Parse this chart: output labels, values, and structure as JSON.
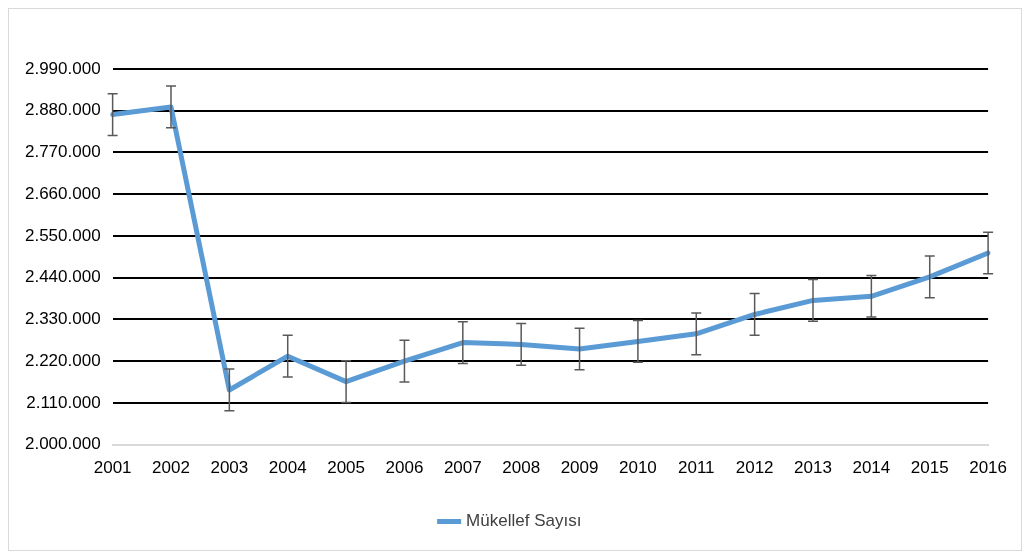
{
  "chart_data": {
    "type": "line",
    "categories": [
      "2001",
      "2002",
      "2003",
      "2004",
      "2005",
      "2006",
      "2007",
      "2008",
      "2009",
      "2010",
      "2011",
      "2012",
      "2013",
      "2014",
      "2015",
      "2016"
    ],
    "series": [
      {
        "name": "Mükellef Sayısı",
        "color": "#5b9bd5",
        "values": [
          2870000,
          2890000,
          2144000,
          2233000,
          2166000,
          2220000,
          2269000,
          2264000,
          2252000,
          2272000,
          2292000,
          2343000,
          2380000,
          2391000,
          2442000,
          2505000
        ],
        "errors": [
          55000,
          55000,
          55000,
          55000,
          55000,
          55000,
          55000,
          55000,
          55000,
          55000,
          55000,
          55000,
          55000,
          55000,
          55000,
          55000
        ]
      }
    ],
    "ylim": [
      2000000,
      2990000
    ],
    "yticks": [
      {
        "value": 2000000,
        "label": "2.000.000"
      },
      {
        "value": 2110000,
        "label": "2.110.000"
      },
      {
        "value": 2220000,
        "label": "2.220.000"
      },
      {
        "value": 2330000,
        "label": "2.330.000"
      },
      {
        "value": 2440000,
        "label": "2.440.000"
      },
      {
        "value": 2550000,
        "label": "2.550.000"
      },
      {
        "value": 2660000,
        "label": "2.660.000"
      },
      {
        "value": 2770000,
        "label": "2.770.000"
      },
      {
        "value": 2880000,
        "label": "2.880.000"
      },
      {
        "value": 2990000,
        "label": "2.990.000"
      }
    ],
    "grid": "y",
    "legend": "bottom",
    "marker": "none",
    "line_style": "solid"
  }
}
